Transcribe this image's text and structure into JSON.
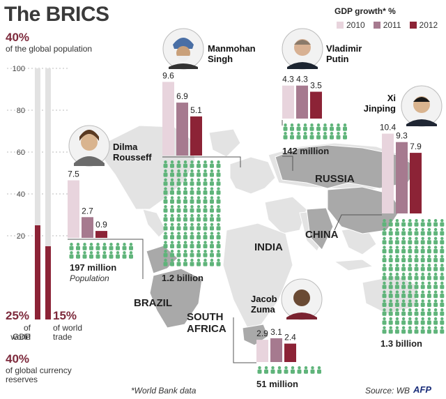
{
  "title": "The BRICS",
  "global_population": {
    "pct": "40%",
    "label": "of the global population"
  },
  "left_panel": {
    "gdp": {
      "pct": "25%",
      "label_1": "of world",
      "label_2": "GDP"
    },
    "trade": {
      "pct": "15%",
      "label_1": "of world",
      "label_2": "trade"
    },
    "reserves": {
      "pct": "40%",
      "label_1": "of global currency",
      "label_2": "reserves"
    }
  },
  "legend": {
    "title": "GDP growth* %",
    "items": [
      {
        "label": "2010",
        "color": "#e8d4dd"
      },
      {
        "label": "2011",
        "color": "#a67a8f"
      },
      {
        "label": "2012",
        "color": "#8c2336"
      }
    ]
  },
  "leaders": {
    "brazil": {
      "first": "Dilma",
      "last": "Rousseff"
    },
    "india": {
      "first": "Manmohan",
      "last": "Singh"
    },
    "russia": {
      "first": "Vladimir",
      "last": "Putin"
    },
    "china": {
      "first": "Xi",
      "last": "Jinping"
    },
    "south_africa": {
      "first": "Jacob",
      "last": "Zuma"
    }
  },
  "countries": {
    "brazil": "BRAZIL",
    "india": "INDIA",
    "russia": "RUSSIA",
    "china": "CHINA",
    "south_africa_1": "SOUTH",
    "south_africa_2": "AFRICA"
  },
  "population": {
    "brazil": "197 million",
    "brazil_caption": "Population",
    "india": "1.2 billion",
    "russia": "142 million",
    "china": "1.3 billion",
    "south_africa": "51 million"
  },
  "footnote": "*World Bank data",
  "source": "Source: WB",
  "logo": "AFP",
  "chart_data": [
    {
      "type": "bar",
      "title": "",
      "ylim": [
        0,
        100
      ],
      "yticks": [
        20,
        40,
        60,
        80,
        100
      ],
      "categories": [
        "GDP",
        "trade"
      ],
      "values": [
        25,
        15
      ],
      "colors": [
        "#8c2336",
        "#8c2336"
      ],
      "background_color": "#e2e2e2"
    },
    {
      "type": "bar",
      "title": "GDP growth* %",
      "categories": [
        "Brazil",
        "India",
        "Russia",
        "China",
        "South Africa"
      ],
      "series": [
        {
          "name": "2010",
          "values": [
            7.5,
            9.6,
            4.3,
            10.4,
            2.9
          ]
        },
        {
          "name": "2011",
          "values": [
            2.7,
            6.9,
            4.3,
            9.3,
            3.1
          ]
        },
        {
          "name": "2012",
          "values": [
            0.9,
            5.1,
            3.5,
            7.9,
            2.4
          ]
        }
      ]
    }
  ]
}
